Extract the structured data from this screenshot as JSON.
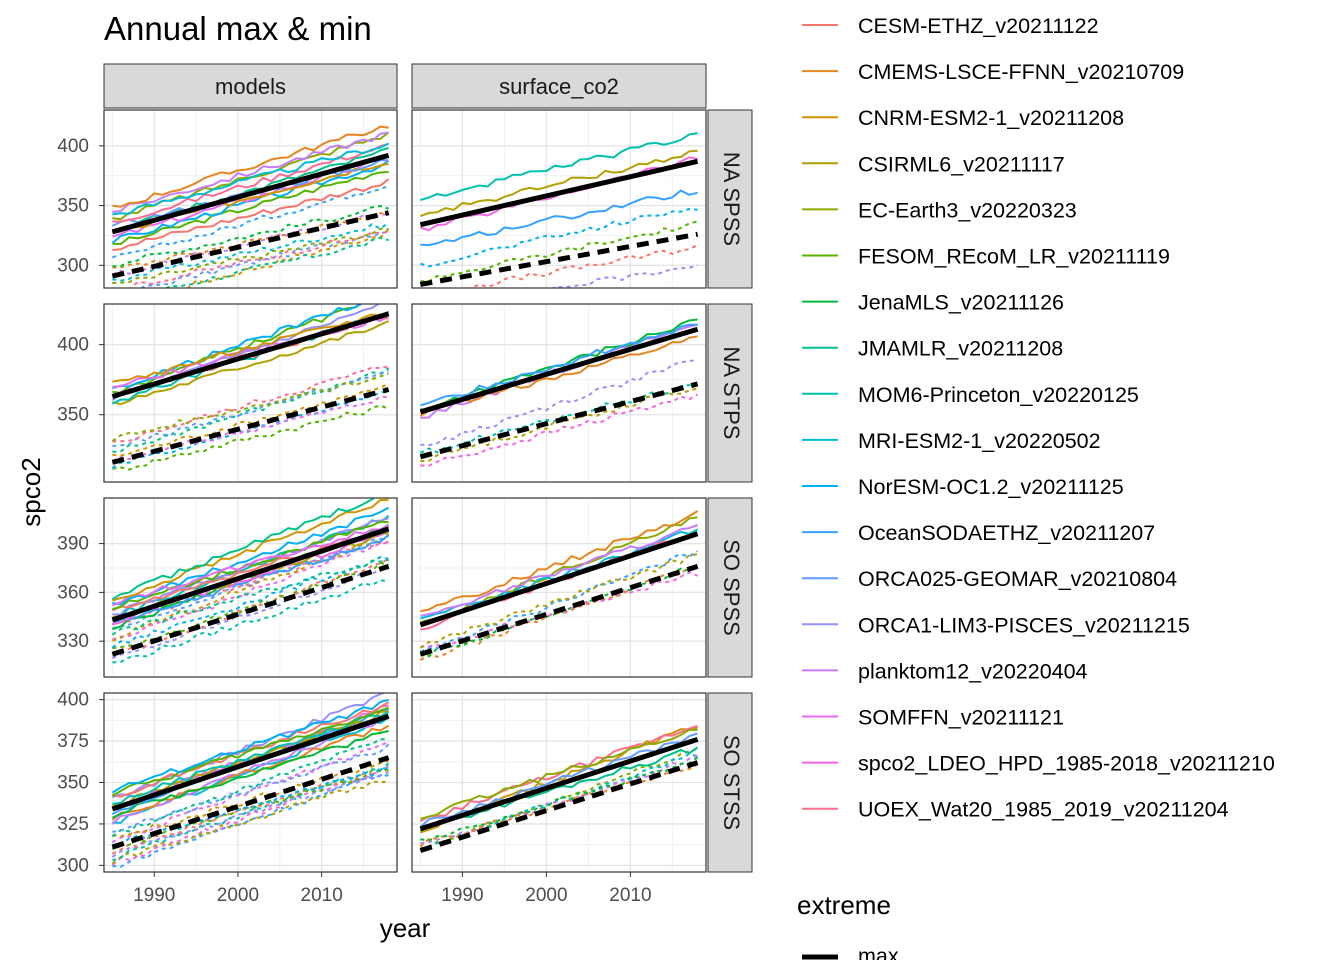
{
  "chart_data": {
    "type": "line",
    "title": "Annual max & min",
    "xlabel": "year",
    "ylabel": "spco2",
    "x_ticks": [
      1990,
      2000,
      2010
    ],
    "xlim": [
      1984,
      2019
    ],
    "facet_cols": [
      "models",
      "surface_co2"
    ],
    "facet_rows": [
      {
        "label": "NA SPSS",
        "ylim": [
          281,
          430
        ],
        "yticks": [
          300,
          350,
          400
        ],
        "models": {
          "max_fit": [
            328,
            392
          ],
          "min_fit": [
            291,
            344
          ],
          "hi_lines": 12,
          "lo_lines": 10,
          "hi_span": [
            314,
            348
          ],
          "lo_span": [
            266,
            305
          ]
        },
        "surface_co2": {
          "max_fit": [
            334,
            387
          ],
          "min_fit": [
            284,
            326
          ],
          "hi_lines": 4,
          "lo_lines": 4,
          "hi_span": [
            316,
            355
          ],
          "lo_span": [
            262,
            300
          ]
        }
      },
      {
        "label": "NA STPS",
        "ylim": [
          302,
          429
        ],
        "yticks": [
          350,
          400
        ],
        "models": {
          "max_fit": [
            363,
            422
          ],
          "min_fit": [
            316,
            368
          ],
          "hi_lines": 8,
          "lo_lines": 8,
          "hi_span": [
            357,
            372
          ],
          "lo_span": [
            310,
            333
          ]
        },
        "surface_co2": {
          "max_fit": [
            352,
            411
          ],
          "min_fit": [
            320,
            372
          ],
          "hi_lines": 4,
          "lo_lines": 4,
          "hi_span": [
            348,
            356
          ],
          "lo_span": [
            313,
            327
          ]
        }
      },
      {
        "label": "SO SPSS",
        "ylim": [
          308,
          418
        ],
        "yticks": [
          330,
          360,
          390
        ],
        "models": {
          "max_fit": [
            343,
            399
          ],
          "min_fit": [
            322,
            376
          ],
          "hi_lines": 12,
          "lo_lines": 10,
          "hi_span": [
            338,
            357
          ],
          "lo_span": [
            316,
            340
          ]
        },
        "surface_co2": {
          "max_fit": [
            340,
            396
          ],
          "min_fit": [
            322,
            376
          ],
          "hi_lines": 5,
          "lo_lines": 5,
          "hi_span": [
            338,
            347
          ],
          "lo_span": [
            318,
            327
          ]
        }
      },
      {
        "label": "SO STSS",
        "ylim": [
          296,
          404
        ],
        "yticks": [
          300,
          325,
          350,
          375,
          400
        ],
        "models": {
          "max_fit": [
            334,
            390
          ],
          "min_fit": [
            311,
            365
          ],
          "hi_lines": 12,
          "lo_lines": 12,
          "hi_span": [
            325,
            345
          ],
          "lo_span": [
            299,
            320
          ]
        },
        "surface_co2": {
          "max_fit": [
            322,
            376
          ],
          "min_fit": [
            309,
            362
          ],
          "hi_lines": 5,
          "lo_lines": 5,
          "hi_span": [
            320,
            329
          ],
          "lo_span": [
            309,
            314
          ]
        }
      }
    ],
    "legend_position": "right",
    "series": [
      {
        "name": "CESM-ETHZ_v20211122",
        "color": "#F8766D"
      },
      {
        "name": "CMEMS-LSCE-FFNN_v20210709",
        "color": "#E7851E"
      },
      {
        "name": "CNRM-ESM2-1_v20211208",
        "color": "#D09400"
      },
      {
        "name": "CSIRML6_v20211117",
        "color": "#B2A100"
      },
      {
        "name": "EC-Earth3_v20220323",
        "color": "#8BAB00"
      },
      {
        "name": "FESOM_REcoM_LR_v20211119",
        "color": "#55B400"
      },
      {
        "name": "JenaMLS_v20211126",
        "color": "#00BA38"
      },
      {
        "name": "JMAMLR_v20211208",
        "color": "#00C08B"
      },
      {
        "name": "MOM6-Princeton_v20220125",
        "color": "#00C0AF"
      },
      {
        "name": "MRI-ESM2-1_v20220502",
        "color": "#00BCD8"
      },
      {
        "name": "NorESM-OC1.2_v20211125",
        "color": "#00B0F6"
      },
      {
        "name": "OceanSODAETHZ_v20211207",
        "color": "#35A2FF"
      },
      {
        "name": "ORCA025-GEOMAR_v20210804",
        "color": "#619CFF"
      },
      {
        "name": "ORCA1-LIM3-PISCES_v20211215",
        "color": "#9590FF"
      },
      {
        "name": "planktom12_v20220404",
        "color": "#C77CFF"
      },
      {
        "name": "SOMFFN_v20211121",
        "color": "#E76BF3"
      },
      {
        "name": "spco2_LDEO_HPD_1985-2018_v20211210",
        "color": "#F564E3"
      },
      {
        "name": "UOEX_Wat20_1985_2019_v20211204",
        "color": "#FF6C91"
      }
    ],
    "linetype_legend": {
      "title": "extreme",
      "items": [
        "max"
      ]
    }
  }
}
